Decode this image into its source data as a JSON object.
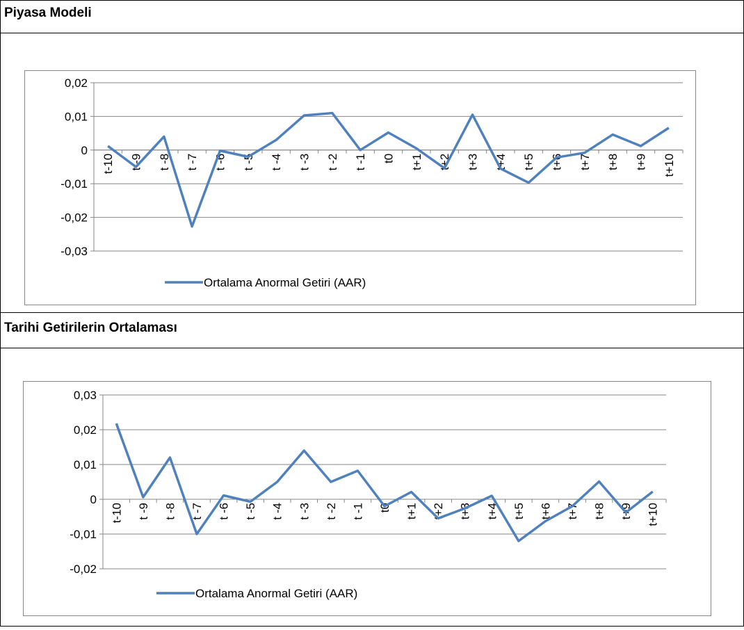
{
  "chart_data": [
    {
      "type": "line",
      "title": "Piyasa Modeli",
      "categories": [
        "t-10",
        "t -9",
        "t -8",
        "t -7",
        "t -6",
        "t -5",
        "t -4",
        "t -3",
        "t -2",
        "t -1",
        "t0",
        "t+1",
        "t+2",
        "t+3",
        "t+4",
        "t+5",
        "t+6",
        "t+7",
        "t+8",
        "t+9",
        "t+10"
      ],
      "series": [
        {
          "name": "Ortalama Anormal Getiri (AAR)",
          "color": "#4f81bd",
          "values": [
            0.0012,
            -0.005,
            0.004,
            -0.0227,
            -0.0002,
            -0.002,
            0.003,
            0.0103,
            0.011,
            0,
            0.0052,
            0.0005,
            -0.0054,
            0.0105,
            -0.0055,
            -0.0097,
            -0.0022,
            -0.0008,
            0.0046,
            0.0012,
            0.0066
          ]
        }
      ],
      "ylim": [
        -0.03,
        0.02
      ],
      "yticks": [
        {
          "value": -0.03,
          "label": "-0,03"
        },
        {
          "value": -0.02,
          "label": "-0,02"
        },
        {
          "value": -0.01,
          "label": "-0,01"
        },
        0,
        {
          "value": 0.01,
          "label": "0,01"
        },
        {
          "value": 0.02,
          "label": "0,02"
        }
      ],
      "grid": true,
      "legend": "bottom"
    },
    {
      "type": "line",
      "title": "Tarihi Getirilerin Ortalaması",
      "categories": [
        "t-10",
        "t -9",
        "t -8",
        "t -7",
        "t -6",
        "t -5",
        "t -4",
        "t -3",
        "t -2",
        "t -1",
        "t0",
        "t+1",
        "t+2",
        "t+3",
        "t+4",
        "t+5",
        "t+6",
        "t+7",
        "t+8",
        "t+9",
        "t+10"
      ],
      "series": [
        {
          "name": "Ortalama Anormal Getiri (AAR)",
          "color": "#4f81bd",
          "values": [
            0.0218,
            0.0006,
            0.012,
            -0.01,
            0.0011,
            -0.0007,
            0.005,
            0.014,
            0.005,
            0.0082,
            -0.002,
            0.0021,
            -0.0055,
            -0.0026,
            0.001,
            -0.012,
            -0.0063,
            -0.002,
            0.0051,
            -0.0038,
            0.0022
          ]
        }
      ],
      "ylim": [
        -0.02,
        0.03
      ],
      "yticks": [
        {
          "value": -0.02,
          "label": "-0,02"
        },
        {
          "value": -0.01,
          "label": "-0,01"
        },
        0,
        {
          "value": 0.01,
          "label": "0,01"
        },
        {
          "value": 0.02,
          "label": "0,02"
        },
        {
          "value": 0.03,
          "label": "0,03"
        }
      ],
      "grid": true,
      "legend": "bottom"
    }
  ]
}
